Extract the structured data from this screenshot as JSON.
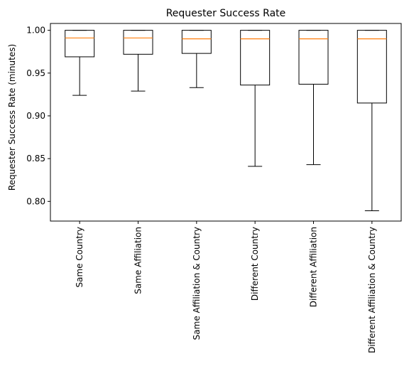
{
  "chart_data": {
    "type": "box",
    "title": "Requester Success Rate",
    "xlabel": "",
    "ylabel": "Requester Success Rate (minutes)",
    "ylim": [
      0.777,
      1.008
    ],
    "yticks": [
      0.8,
      0.85,
      0.9,
      0.95,
      1.0
    ],
    "ytick_labels": [
      "0.80",
      "0.85",
      "0.90",
      "0.95",
      "1.00"
    ],
    "grid": false,
    "categories": [
      "Same Country",
      "Same Affiliation",
      "Same Affiliation & Country",
      "Different Country",
      "Different Affiliation",
      "Different Affiliation & Country"
    ],
    "boxes": [
      {
        "whisker_low": 0.924,
        "q1": 0.969,
        "median": 0.991,
        "q3": 1.0,
        "whisker_high": 1.0
      },
      {
        "whisker_low": 0.929,
        "q1": 0.972,
        "median": 0.991,
        "q3": 1.0,
        "whisker_high": 1.0
      },
      {
        "whisker_low": 0.933,
        "q1": 0.973,
        "median": 0.99,
        "q3": 1.0,
        "whisker_high": 1.0
      },
      {
        "whisker_low": 0.841,
        "q1": 0.936,
        "median": 0.99,
        "q3": 1.0,
        "whisker_high": 1.0
      },
      {
        "whisker_low": 0.843,
        "q1": 0.937,
        "median": 0.99,
        "q3": 1.0,
        "whisker_high": 1.0
      },
      {
        "whisker_low": 0.789,
        "q1": 0.915,
        "median": 0.99,
        "q3": 1.0,
        "whisker_high": 1.0
      }
    ],
    "colors": {
      "box": "#000000",
      "median": "#ff7f0e"
    }
  }
}
